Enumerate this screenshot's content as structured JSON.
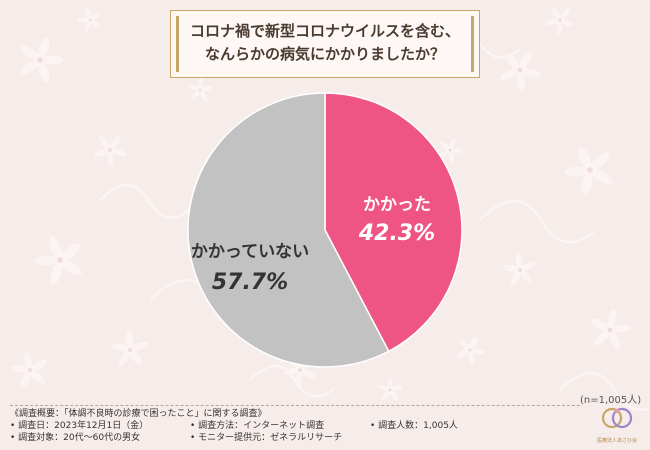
{
  "title": {
    "line1": "コロナ禍で新型コロナウイルスを含む、",
    "line2": "なんらかの病気にかかりましたか？"
  },
  "chart_data": {
    "type": "pie",
    "title": "コロナ禍で新型コロナウイルスを含む、なんらかの病気にかかりましたか？",
    "slices": [
      {
        "label": "かかった",
        "value": 42.3,
        "display": "42.3%",
        "color": "#ee5585"
      },
      {
        "label": "かかっていない",
        "value": 57.7,
        "display": "57.7%",
        "color": "#c2c2c2"
      }
    ],
    "sample_size": "(n=1,005人)"
  },
  "survey": {
    "header": "《調査概要：「体調不良時の診療で困ったこと」に関する調査》",
    "date": "• 調査日：2023年12月1日（金）",
    "method": "• 調査方法：インターネット調査",
    "count": "• 調査人数：1,005人",
    "target": "• 調査対象：20代～60代の男女",
    "provider": "• モニター提供元：ゼネラルリサーチ"
  },
  "logo": {
    "text": "医療法人あさひ会"
  },
  "colors": {
    "gold": "#c6a768",
    "pink": "#ee5585",
    "gray": "#c2c2c2"
  }
}
